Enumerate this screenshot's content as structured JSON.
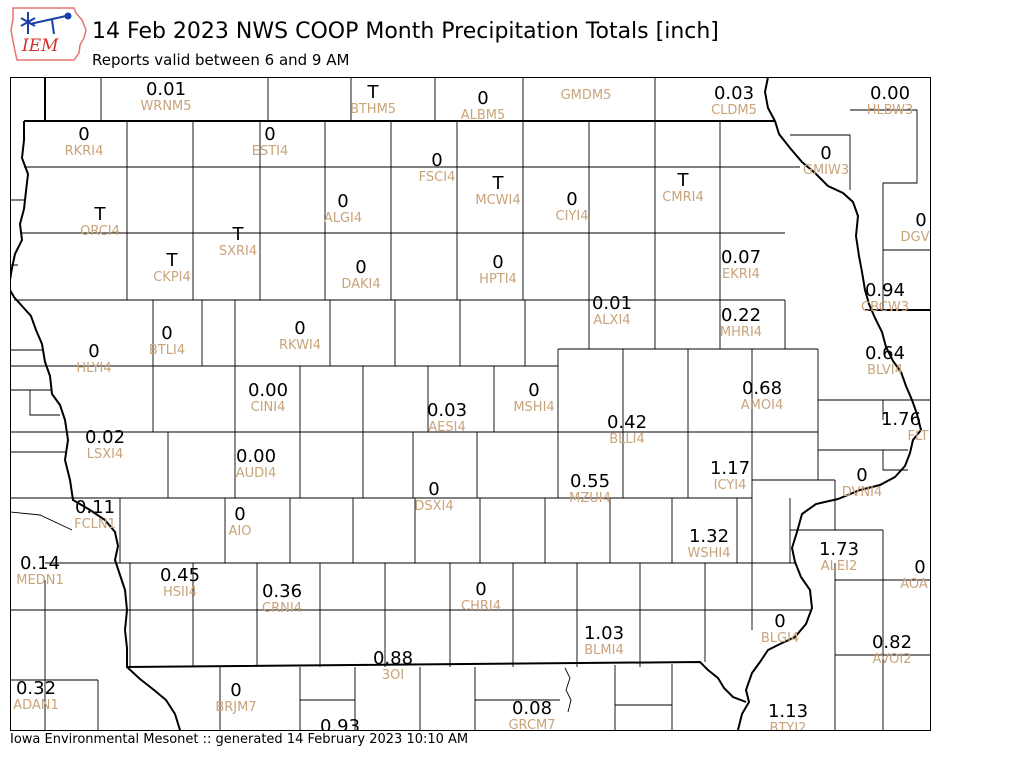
{
  "title": "14 Feb 2023 NWS COOP Month Precipitation Totals [inch]",
  "subtitle": "Reports valid between 6 and 9 AM",
  "footer": "Iowa Environmental Mesonet :: generated 14 February 2023 10:10 AM",
  "logo": {
    "text": "IEM",
    "text_color": "#d32f2f",
    "outline_color": "#e57373",
    "mark_color": "#1a3fa8"
  },
  "colors": {
    "value": "#000000",
    "station_id": "#c9a37a",
    "boundary": "#000000"
  },
  "stations": [
    {
      "value": "0.01",
      "id": "WRNM5"
    },
    {
      "value": "T",
      "id": "BTHM5"
    },
    {
      "value": "0",
      "id": "ALBM5"
    },
    {
      "id": "GMDM5"
    },
    {
      "value": "0.03",
      "id": "CLDM5"
    },
    {
      "value": "0.00",
      "id": "HLBW3"
    },
    {
      "value": "0",
      "id": "RKRI4"
    },
    {
      "value": "0",
      "id": "ESTI4"
    },
    {
      "value": "0",
      "id": "FSCI4"
    },
    {
      "value": "T",
      "id": "MCWI4"
    },
    {
      "value": "0",
      "id": "CIYI4"
    },
    {
      "value": "T",
      "id": "CMRI4"
    },
    {
      "value": "0",
      "id": "GMIW3"
    },
    {
      "value": "T",
      "id": "ORCI4"
    },
    {
      "value": "0",
      "id": "ALGI4"
    },
    {
      "value": "T",
      "id": "SXRI4"
    },
    {
      "value": "0",
      "id": "DGV"
    },
    {
      "value": "T",
      "id": "CKPI4"
    },
    {
      "value": "0",
      "id": "DAKI4"
    },
    {
      "value": "0",
      "id": "HPTI4"
    },
    {
      "value": "0.07",
      "id": "EKRI4"
    },
    {
      "value": "0.94",
      "id": "CBCW3"
    },
    {
      "value": "0.01",
      "id": "ALXI4"
    },
    {
      "value": "0.22",
      "id": "MHRI4"
    },
    {
      "value": "0",
      "id": "BTLI4"
    },
    {
      "value": "0",
      "id": "RKWI4"
    },
    {
      "value": "0",
      "id": "HLYI4"
    },
    {
      "value": "0.64",
      "id": "BLVI4"
    },
    {
      "value": "0.00",
      "id": "CINI4"
    },
    {
      "value": "0.03",
      "id": "AESI4"
    },
    {
      "value": "0",
      "id": "MSHI4"
    },
    {
      "value": "0.68",
      "id": "AMOI4"
    },
    {
      "value": "0.42",
      "id": "BLLI4"
    },
    {
      "value": "1.76",
      "id": "FLT"
    },
    {
      "value": "0.02",
      "id": "LSXI4"
    },
    {
      "value": "0.00",
      "id": "AUDI4"
    },
    {
      "value": "1.17",
      "id": "ICYI4"
    },
    {
      "value": "0",
      "id": "DVNI4"
    },
    {
      "value": "0.55",
      "id": "MZUI4"
    },
    {
      "value": "0",
      "id": "DSXI4"
    },
    {
      "value": "0.11",
      "id": "FCLN1"
    },
    {
      "value": "0",
      "id": "AIO"
    },
    {
      "value": "1.32",
      "id": "WSHI4"
    },
    {
      "value": "1.73",
      "id": "ALEI2"
    },
    {
      "value": "0",
      "id": "AOA"
    },
    {
      "value": "0.14",
      "id": "MEDN1"
    },
    {
      "value": "0.45",
      "id": "HSII4"
    },
    {
      "value": "0.36",
      "id": "CRNI4"
    },
    {
      "value": "0",
      "id": "CHRI4"
    },
    {
      "value": "0",
      "id": "BLGI4"
    },
    {
      "value": "1.03",
      "id": "BLMI4"
    },
    {
      "value": "0.82",
      "id": "AVOI2"
    },
    {
      "value": "0.88",
      "id": "3OI"
    },
    {
      "value": "0.32",
      "id": "ADAN1"
    },
    {
      "value": "0",
      "id": "BRJM7"
    },
    {
      "value": "0.08",
      "id": "GRCM7"
    },
    {
      "value": "1.13",
      "id": "BTYI2"
    },
    {
      "value": "0.93"
    }
  ]
}
